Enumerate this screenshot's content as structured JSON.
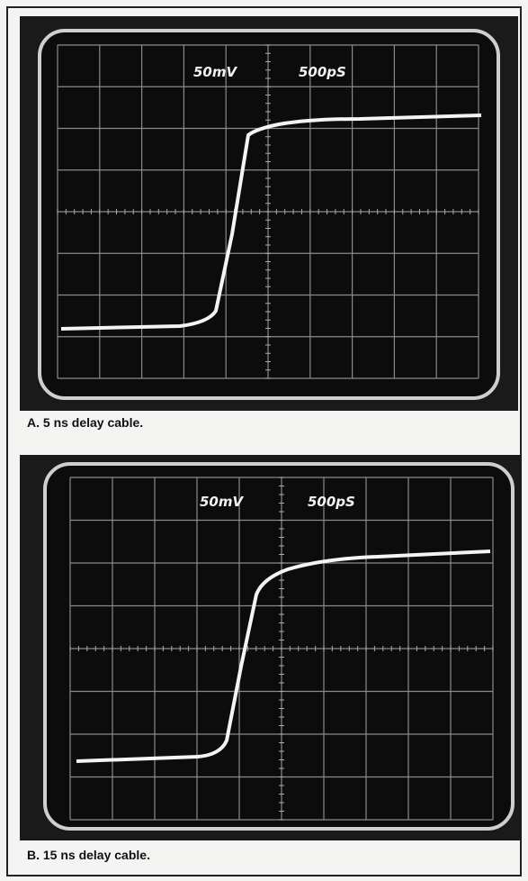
{
  "screens": [
    {
      "vertical_scale": "50mV",
      "time_scale": "500pS",
      "caption": "A. 5 ns delay cable."
    },
    {
      "vertical_scale": "50mV",
      "time_scale": "500pS",
      "caption": "B. 15 ns delay cable."
    }
  ]
}
